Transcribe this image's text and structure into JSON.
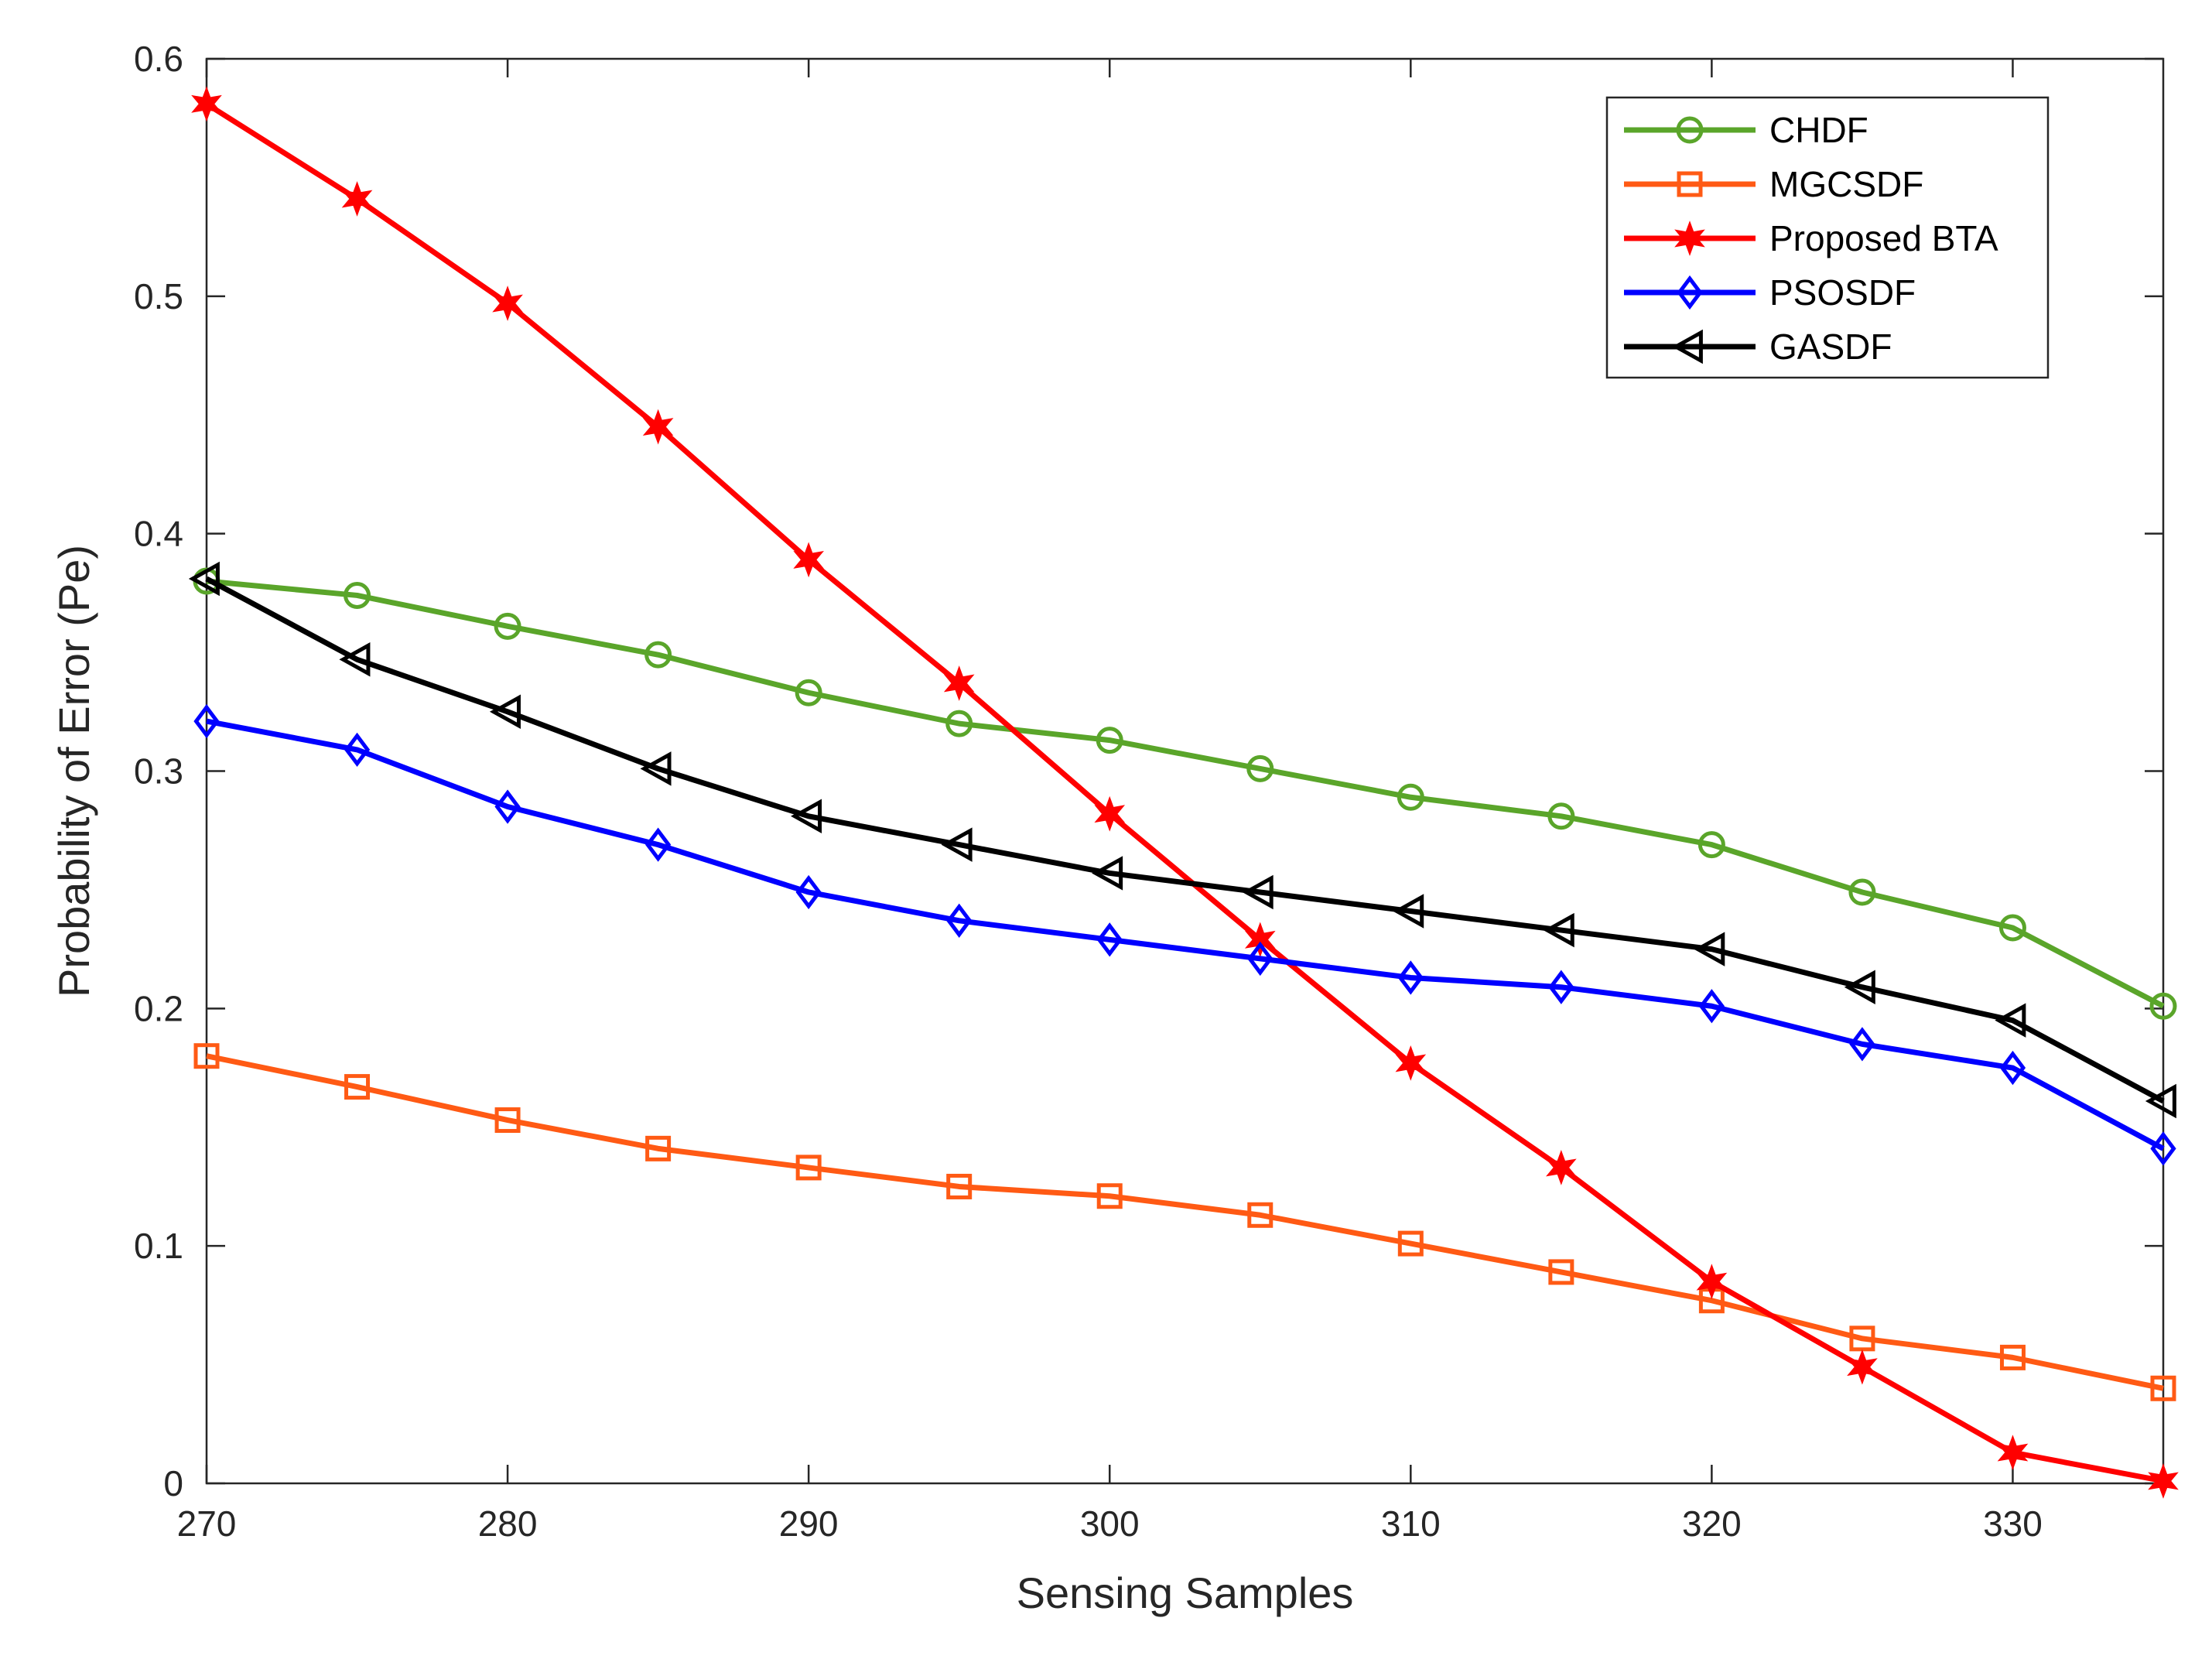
{
  "chart_data": {
    "type": "line",
    "title": "",
    "xlabel": "Sensing Samples",
    "ylabel": "Probability of Error (Pe)",
    "xlim": [
      270,
      335
    ],
    "ylim": [
      0,
      0.6
    ],
    "xticks": [
      270,
      280,
      290,
      300,
      310,
      320,
      330
    ],
    "xtick_labels": [
      "270",
      "280",
      "290",
      "300",
      "310",
      "320",
      "330"
    ],
    "yticks": [
      0,
      0.1,
      0.2,
      0.3,
      0.4,
      0.5,
      0.6
    ],
    "ytick_labels": [
      "0",
      "0.1",
      "0.2",
      "0.3",
      "0.4",
      "0.5",
      "0.6"
    ],
    "grid": false,
    "legend_position": "top-right",
    "x": [
      270,
      275,
      280,
      285,
      290,
      295,
      300,
      305,
      310,
      315,
      320,
      325,
      330,
      335
    ],
    "series": [
      {
        "name": "CHDF",
        "color": "#5aa52a",
        "marker": "circle",
        "values": [
          0.38,
          0.374,
          0.361,
          0.349,
          0.333,
          0.32,
          0.313,
          0.301,
          0.289,
          0.281,
          0.269,
          0.249,
          0.234,
          0.201
        ]
      },
      {
        "name": "MGCSDF",
        "color": "#ff5a14",
        "marker": "square",
        "values": [
          0.18,
          0.167,
          0.153,
          0.141,
          0.133,
          0.125,
          0.121,
          0.113,
          0.101,
          0.089,
          0.077,
          0.061,
          0.053,
          0.04
        ]
      },
      {
        "name": "Proposed BTA",
        "color": "#ff0000",
        "marker": "star",
        "values": [
          0.581,
          0.541,
          0.497,
          0.445,
          0.389,
          0.337,
          0.282,
          0.229,
          0.177,
          0.133,
          0.085,
          0.049,
          0.013,
          0.001
        ]
      },
      {
        "name": "PSOSDF",
        "color": "#0000ff",
        "marker": "diamond",
        "values": [
          0.321,
          0.309,
          0.285,
          0.269,
          0.249,
          0.237,
          0.229,
          0.221,
          0.213,
          0.209,
          0.201,
          0.185,
          0.175,
          0.141
        ]
      },
      {
        "name": "GASDF",
        "color": "#000000",
        "marker": "triangle-left",
        "values": [
          0.381,
          0.347,
          0.325,
          0.301,
          0.281,
          0.269,
          0.257,
          0.249,
          0.241,
          0.233,
          0.225,
          0.209,
          0.195,
          0.161
        ]
      }
    ]
  }
}
